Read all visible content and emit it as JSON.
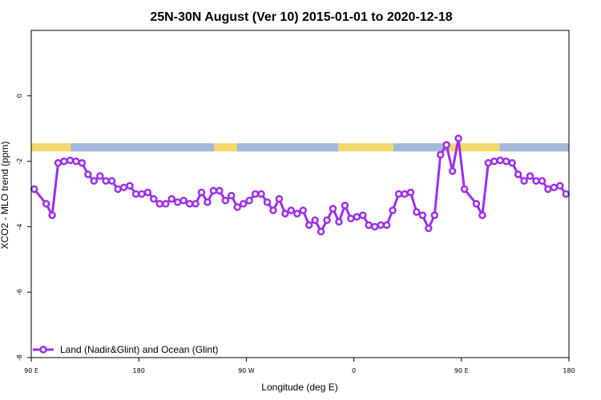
{
  "chart_data": {
    "type": "line",
    "title": "25N-30N August (Ver 10)   2015-01-01 to 2020-12-18",
    "xlabel": "Longitude (deg E)",
    "ylabel": "XCO2 - MLO trend (ppm)",
    "x_ticks": [
      {
        "value": 90,
        "label": "90 E"
      },
      {
        "value": 180,
        "label": "180"
      },
      {
        "value": 270,
        "label": "90 W"
      },
      {
        "value": 360,
        "label": "0"
      },
      {
        "value": 450,
        "label": "90 E"
      },
      {
        "value": 540,
        "label": "180"
      }
    ],
    "y_ticks": [
      {
        "value": 0,
        "label": "0"
      },
      {
        "value": -2,
        "label": "-2"
      },
      {
        "value": -4,
        "label": "-4"
      },
      {
        "value": -6,
        "label": "-6"
      },
      {
        "value": -8,
        "label": "-8"
      }
    ],
    "xlim": [
      90,
      540
    ],
    "ylim": [
      -8,
      2
    ],
    "grid": false,
    "legend_position": "bottom-left",
    "colors": {
      "series": "#9b2fea",
      "land": "#f5d76e",
      "ocean": "#a3b9d9"
    },
    "land_ocean_band": {
      "y_range": [
        -1.7,
        -1.45
      ],
      "segments": [
        {
          "type": "land",
          "x": [
            90,
            123
          ]
        },
        {
          "type": "ocean",
          "x": [
            123,
            243
          ]
        },
        {
          "type": "land",
          "x": [
            243,
            262
          ]
        },
        {
          "type": "ocean",
          "x": [
            262,
            347
          ]
        },
        {
          "type": "land",
          "x": [
            347,
            393
          ]
        },
        {
          "type": "ocean",
          "x": [
            393,
            440
          ]
        },
        {
          "type": "land",
          "x": [
            440,
            482
          ]
        },
        {
          "type": "ocean",
          "x": [
            482,
            540
          ]
        }
      ]
    },
    "series": [
      {
        "name": "Land (Nadir&Glint) and Ocean (Glint)",
        "points": [
          [
            92.5,
            -2.85
          ],
          [
            102.5,
            -3.3
          ],
          [
            107.5,
            -3.65
          ],
          [
            112.5,
            -2.05
          ],
          [
            117.5,
            -2.0
          ],
          [
            122.5,
            -1.97
          ],
          [
            127.5,
            -2.0
          ],
          [
            132.5,
            -2.05
          ],
          [
            137.5,
            -2.4
          ],
          [
            142.5,
            -2.6
          ],
          [
            147.5,
            -2.45
          ],
          [
            152.5,
            -2.6
          ],
          [
            157.5,
            -2.6
          ],
          [
            162.5,
            -2.85
          ],
          [
            167.5,
            -2.8
          ],
          [
            172.5,
            -2.75
          ],
          [
            177.5,
            -3.0
          ],
          [
            182.5,
            -3.0
          ],
          [
            187.5,
            -2.95
          ],
          [
            192.5,
            -3.15
          ],
          [
            197.5,
            -3.3
          ],
          [
            202.5,
            -3.3
          ],
          [
            207.5,
            -3.15
          ],
          [
            212.5,
            -3.25
          ],
          [
            217.5,
            -3.2
          ],
          [
            222.5,
            -3.3
          ],
          [
            227.5,
            -3.3
          ],
          [
            232.5,
            -2.95
          ],
          [
            237.5,
            -3.25
          ],
          [
            242.5,
            -2.9
          ],
          [
            247.5,
            -2.9
          ],
          [
            252.5,
            -3.2
          ],
          [
            257.5,
            -3.05
          ],
          [
            262.5,
            -3.4
          ],
          [
            267.5,
            -3.3
          ],
          [
            272.5,
            -3.2
          ],
          [
            277.5,
            -3.0
          ],
          [
            282.5,
            -3.0
          ],
          [
            287.5,
            -3.25
          ],
          [
            292.5,
            -3.5
          ],
          [
            297.5,
            -3.15
          ],
          [
            302.5,
            -3.6
          ],
          [
            307.5,
            -3.5
          ],
          [
            312.5,
            -3.6
          ],
          [
            317.5,
            -3.5
          ],
          [
            322.5,
            -3.95
          ],
          [
            327.5,
            -3.8
          ],
          [
            332.5,
            -4.15
          ],
          [
            337.5,
            -3.8
          ],
          [
            342.5,
            -3.45
          ],
          [
            347.5,
            -3.85
          ],
          [
            352.5,
            -3.35
          ],
          [
            357.5,
            -3.75
          ],
          [
            362.5,
            -3.7
          ],
          [
            367.5,
            -3.65
          ],
          [
            372.5,
            -3.95
          ],
          [
            377.5,
            -4.0
          ],
          [
            382.5,
            -3.95
          ],
          [
            387.5,
            -3.95
          ],
          [
            392.5,
            -3.5
          ],
          [
            397.5,
            -3.0
          ],
          [
            402.5,
            -3.0
          ],
          [
            407.5,
            -2.95
          ],
          [
            412.5,
            -3.55
          ],
          [
            417.5,
            -3.65
          ],
          [
            422.5,
            -4.05
          ],
          [
            427.5,
            -3.65
          ],
          [
            432.5,
            -1.8
          ],
          [
            437.5,
            -1.5
          ],
          [
            442.5,
            -2.3
          ],
          [
            447.5,
            -1.3
          ],
          [
            452.5,
            -2.85
          ],
          [
            462.5,
            -3.3
          ],
          [
            467.5,
            -3.65
          ],
          [
            472.5,
            -2.05
          ],
          [
            477.5,
            -2.0
          ],
          [
            482.5,
            -1.97
          ],
          [
            487.5,
            -2.0
          ],
          [
            492.5,
            -2.05
          ],
          [
            497.5,
            -2.4
          ],
          [
            502.5,
            -2.6
          ],
          [
            507.5,
            -2.45
          ],
          [
            512.5,
            -2.6
          ],
          [
            517.5,
            -2.6
          ],
          [
            522.5,
            -2.85
          ],
          [
            527.5,
            -2.8
          ],
          [
            532.5,
            -2.75
          ],
          [
            537.5,
            -3.0
          ]
        ]
      }
    ]
  }
}
